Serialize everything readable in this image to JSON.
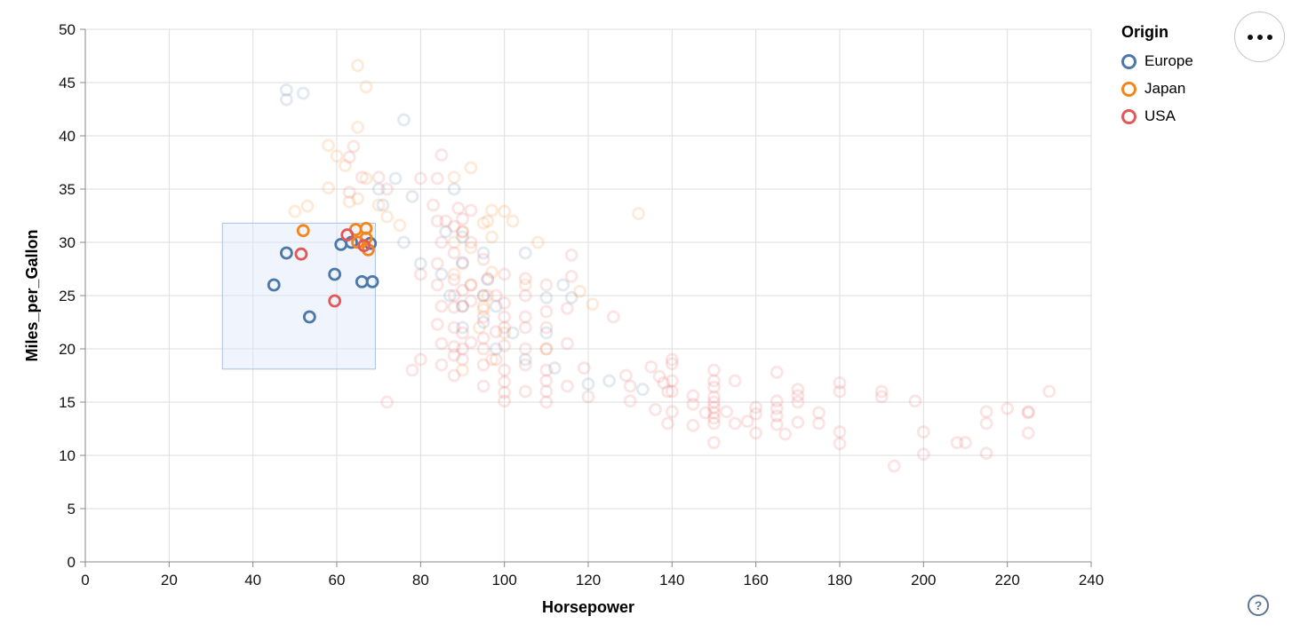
{
  "icons": {
    "menu": "ellipsis-icon",
    "help": "question-mark-icon"
  },
  "help_label": "?",
  "chart_data": {
    "type": "scatter",
    "title": "",
    "xlabel": "Horsepower",
    "ylabel": "Miles_per_Gallon",
    "xlim": [
      0,
      240
    ],
    "ylim": [
      0,
      50
    ],
    "x_ticks": [
      0,
      20,
      40,
      60,
      80,
      100,
      120,
      140,
      160,
      180,
      200,
      220,
      240
    ],
    "y_ticks": [
      0,
      5,
      10,
      15,
      20,
      25,
      30,
      35,
      40,
      45,
      50
    ],
    "grid": true,
    "legend": {
      "title": "Origin",
      "position": "top-right",
      "items": [
        {
          "label": "Europe",
          "color": "#4c78a8"
        },
        {
          "label": "Japan",
          "color": "#f58518"
        },
        {
          "label": "USA",
          "color": "#e45756"
        }
      ]
    },
    "brush_selection": {
      "x0": 32.7,
      "x1": 69.2,
      "y0": 18.1,
      "y1": 31.8,
      "fill": "#dbe7fa",
      "fill_opacity": 0.45,
      "stroke": "#a9c0ea"
    },
    "style": {
      "point_radius": 6,
      "point_stroke_width": 2.8,
      "faded_opacity": 0.16,
      "grid_color": "#dddddd",
      "axis_color": "#888888",
      "label_color": "#111111"
    },
    "series": [
      {
        "name": "Europe",
        "color": "#4c78a8",
        "selected": [
          [
            48,
            29
          ],
          [
            61,
            29.8
          ],
          [
            63.5,
            30
          ],
          [
            68,
            29.9
          ],
          [
            45,
            26
          ],
          [
            59.5,
            27
          ],
          [
            66,
            26.3
          ],
          [
            68.5,
            26.3
          ],
          [
            53.5,
            23
          ]
        ],
        "points": [
          [
            48,
            44.3
          ],
          [
            48,
            43.4
          ],
          [
            52,
            44
          ],
          [
            76,
            41.5
          ],
          [
            78,
            34.3
          ],
          [
            74,
            36
          ],
          [
            70,
            35
          ],
          [
            71,
            33.5
          ],
          [
            88,
            35
          ],
          [
            90,
            30.5
          ],
          [
            86,
            31
          ],
          [
            95,
            29
          ],
          [
            90,
            28.1
          ],
          [
            105,
            29
          ],
          [
            96,
            26.5
          ],
          [
            76,
            30
          ],
          [
            80,
            28
          ],
          [
            85,
            27
          ],
          [
            87,
            25
          ],
          [
            90,
            24
          ],
          [
            95,
            25
          ],
          [
            98,
            24
          ],
          [
            110,
            24.8
          ],
          [
            114,
            26
          ],
          [
            116,
            24.8
          ],
          [
            90,
            22
          ],
          [
            95,
            22.5
          ],
          [
            102,
            21.5
          ],
          [
            110,
            21.5
          ],
          [
            98,
            20
          ],
          [
            105,
            19
          ],
          [
            112,
            18.2
          ],
          [
            120,
            16.7
          ],
          [
            125,
            17
          ],
          [
            133,
            16.2
          ]
        ]
      },
      {
        "name": "Japan",
        "color": "#f58518",
        "selected": [
          [
            52,
            31.1
          ],
          [
            64.5,
            31.2
          ],
          [
            67,
            31.3
          ],
          [
            67,
            30.4
          ],
          [
            65,
            30
          ],
          [
            67.5,
            29.3
          ]
        ],
        "points": [
          [
            65,
            46.6
          ],
          [
            67,
            44.6
          ],
          [
            65,
            40.8
          ],
          [
            58,
            39.1
          ],
          [
            60,
            38.1
          ],
          [
            62,
            37.2
          ],
          [
            67,
            36
          ],
          [
            58,
            35.1
          ],
          [
            65,
            34.1
          ],
          [
            63,
            33.8
          ],
          [
            70,
            33.5
          ],
          [
            50,
            32.9
          ],
          [
            53,
            33.4
          ],
          [
            92,
            37
          ],
          [
            88,
            36.1
          ],
          [
            96,
            32
          ],
          [
            100,
            32.9
          ],
          [
            95,
            31.8
          ],
          [
            97,
            30.5
          ],
          [
            88,
            30
          ],
          [
            92,
            29.5
          ],
          [
            90,
            31
          ],
          [
            75,
            31.6
          ],
          [
            72,
            32.4
          ],
          [
            97,
            33
          ],
          [
            102,
            32
          ],
          [
            108,
            30
          ],
          [
            132,
            32.7
          ],
          [
            118,
            25.4
          ],
          [
            121,
            24.2
          ],
          [
            95,
            24
          ],
          [
            96,
            25
          ],
          [
            97,
            27.2
          ],
          [
            88,
            27
          ],
          [
            92,
            26
          ],
          [
            94,
            22
          ],
          [
            95,
            23.7
          ],
          [
            100,
            21.5
          ],
          [
            97,
            19
          ],
          [
            90,
            18
          ],
          [
            110,
            20
          ],
          [
            105,
            26
          ]
        ]
      },
      {
        "name": "USA",
        "color": "#e45756",
        "selected": [
          [
            51.5,
            28.9
          ],
          [
            62.5,
            30.7
          ],
          [
            66.5,
            29.7
          ],
          [
            59.5,
            24.5
          ]
        ],
        "points": [
          [
            63,
            38
          ],
          [
            64,
            39
          ],
          [
            66,
            36.1
          ],
          [
            70,
            36.1
          ],
          [
            63,
            34.7
          ],
          [
            72,
            35
          ],
          [
            85,
            38.2
          ],
          [
            84,
            36
          ],
          [
            80,
            36
          ],
          [
            83,
            33.5
          ],
          [
            89,
            33.2
          ],
          [
            92,
            33
          ],
          [
            86,
            32
          ],
          [
            90,
            32.2
          ],
          [
            88,
            31.5
          ],
          [
            84,
            32
          ],
          [
            90,
            31
          ],
          [
            92,
            30
          ],
          [
            85,
            30
          ],
          [
            88,
            29
          ],
          [
            95,
            28.4
          ],
          [
            90,
            28
          ],
          [
            84,
            28
          ],
          [
            80,
            27
          ],
          [
            88,
            26.5
          ],
          [
            92,
            26
          ],
          [
            96,
            26.6
          ],
          [
            100,
            27
          ],
          [
            105,
            26.6
          ],
          [
            84,
            26
          ],
          [
            88,
            25
          ],
          [
            90,
            25.5
          ],
          [
            95,
            25
          ],
          [
            98,
            25
          ],
          [
            100,
            24.3
          ],
          [
            105,
            25
          ],
          [
            110,
            26
          ],
          [
            116,
            28.8
          ],
          [
            116,
            26.8
          ],
          [
            90,
            24
          ],
          [
            92,
            24.5
          ],
          [
            85,
            24
          ],
          [
            88,
            23.9
          ],
          [
            95,
            23
          ],
          [
            100,
            23
          ],
          [
            105,
            23
          ],
          [
            110,
            23.5
          ],
          [
            115,
            23.8
          ],
          [
            126,
            23
          ],
          [
            84,
            22.3
          ],
          [
            88,
            22
          ],
          [
            90,
            21.5
          ],
          [
            95,
            21
          ],
          [
            98,
            21.6
          ],
          [
            100,
            22
          ],
          [
            105,
            22
          ],
          [
            110,
            22
          ],
          [
            85,
            20.5
          ],
          [
            88,
            20.2
          ],
          [
            90,
            20
          ],
          [
            92,
            20.6
          ],
          [
            95,
            20
          ],
          [
            100,
            20.3
          ],
          [
            105,
            20
          ],
          [
            110,
            20
          ],
          [
            115,
            20.5
          ],
          [
            88,
            19.4
          ],
          [
            90,
            19
          ],
          [
            95,
            18.5
          ],
          [
            98,
            19
          ],
          [
            100,
            18
          ],
          [
            105,
            18.5
          ],
          [
            110,
            18
          ],
          [
            85,
            18.5
          ],
          [
            80,
            19
          ],
          [
            78,
            18
          ],
          [
            88,
            17.5
          ],
          [
            95,
            16.5
          ],
          [
            100,
            16.9
          ],
          [
            100,
            15.9
          ],
          [
            100,
            15.1
          ],
          [
            105,
            16
          ],
          [
            110,
            17
          ],
          [
            110,
            16
          ],
          [
            110,
            15
          ],
          [
            115,
            16.5
          ],
          [
            119,
            18.2
          ],
          [
            120,
            15.5
          ],
          [
            72,
            15
          ],
          [
            129,
            17.5
          ],
          [
            130,
            16.5
          ],
          [
            130,
            15.1
          ],
          [
            135,
            18.3
          ],
          [
            137,
            17.4
          ],
          [
            138,
            16.8
          ],
          [
            139,
            16
          ],
          [
            139,
            13
          ],
          [
            140,
            19
          ],
          [
            140,
            18.6
          ],
          [
            140,
            17
          ],
          [
            140,
            16
          ],
          [
            140,
            14.1
          ],
          [
            136,
            14.3
          ],
          [
            145,
            15.6
          ],
          [
            145,
            14.8
          ],
          [
            145,
            12.8
          ],
          [
            148,
            14
          ],
          [
            150,
            18
          ],
          [
            150,
            17
          ],
          [
            150,
            16.4
          ],
          [
            150,
            15.5
          ],
          [
            150,
            15
          ],
          [
            150,
            14.5
          ],
          [
            150,
            14
          ],
          [
            150,
            13.5
          ],
          [
            150,
            13
          ],
          [
            150,
            11.2
          ],
          [
            153,
            14.1
          ],
          [
            155,
            17
          ],
          [
            155,
            13
          ],
          [
            158,
            13.2
          ],
          [
            160,
            14.5
          ],
          [
            160,
            13.9
          ],
          [
            160,
            12.1
          ],
          [
            165,
            17.8
          ],
          [
            165,
            15.1
          ],
          [
            165,
            14.4
          ],
          [
            165,
            13.7
          ],
          [
            165,
            12.9
          ],
          [
            167,
            12
          ],
          [
            170,
            16.2
          ],
          [
            170,
            15.6
          ],
          [
            170,
            15
          ],
          [
            170,
            13.1
          ],
          [
            175,
            14
          ],
          [
            175,
            13
          ],
          [
            180,
            16.8
          ],
          [
            180,
            16
          ],
          [
            180,
            12.2
          ],
          [
            180,
            11.1
          ],
          [
            190,
            16
          ],
          [
            190,
            15.5
          ],
          [
            193,
            9
          ],
          [
            198,
            15.1
          ],
          [
            200,
            12.2
          ],
          [
            200,
            10.1
          ],
          [
            208,
            11.2
          ],
          [
            210,
            11.2
          ],
          [
            215,
            14.1
          ],
          [
            215,
            13
          ],
          [
            215,
            10.2
          ],
          [
            220,
            14.4
          ],
          [
            225,
            14.1
          ],
          [
            225,
            14
          ],
          [
            225,
            12.1
          ],
          [
            230,
            16
          ]
        ]
      }
    ]
  }
}
